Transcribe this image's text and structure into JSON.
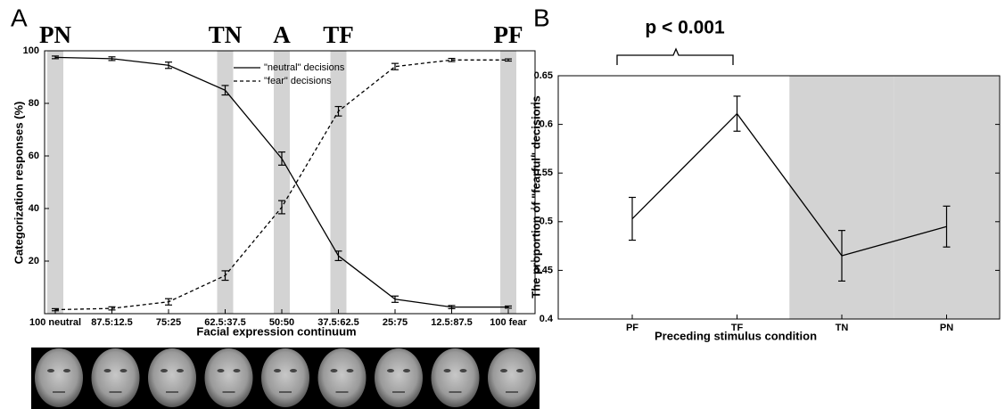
{
  "chart_data": [
    {
      "type": "line",
      "panel_label": "A",
      "x_label": "Facial expression continuum",
      "y_label": "Categorization responses (%)",
      "categories": [
        "100 neutral",
        "87.5:12.5",
        "75:25",
        "62.5:37.5",
        "50:50",
        "37.5:62.5",
        "25:75",
        "12.5:87.5",
        "100 fear"
      ],
      "band_labels": [
        "PN",
        null,
        null,
        "TN",
        "A",
        "TF",
        null,
        null,
        "PF"
      ],
      "ylim": [
        0,
        100
      ],
      "yticks": [
        20,
        40,
        60,
        80,
        100
      ],
      "legend": "top-center",
      "series": [
        {
          "name": "\"neutral\" decisions",
          "color": "#000000",
          "line_style": "solid",
          "values": [
            97.5,
            97,
            94.5,
            85,
            59,
            22,
            5.5,
            2.5,
            2.5
          ],
          "errors": [
            0.5,
            0.7,
            1.2,
            1.8,
            2.5,
            1.8,
            1.2,
            0.6,
            0.4
          ]
        },
        {
          "name": "\"fear\" decisions",
          "color": "#000000",
          "line_style": "dashed",
          "values": [
            1.5,
            2,
            4.5,
            14.5,
            40.5,
            77,
            94,
            96.5,
            96.5
          ],
          "errors": [
            0.4,
            0.6,
            1.2,
            1.8,
            2.5,
            1.8,
            1.2,
            0.6,
            0.4
          ]
        }
      ]
    },
    {
      "type": "line",
      "panel_label": "B",
      "x_label": "Preceding stimulus condition",
      "y_label": "The proportion of \"fearful\" decisions",
      "annotation": "p < 0.001",
      "categories": [
        "PF",
        "TF",
        "TN",
        "PN"
      ],
      "shaded": [
        false,
        false,
        true,
        true
      ],
      "ylim": [
        0.4,
        0.65
      ],
      "yticks": [
        0.4,
        0.45,
        0.5,
        0.55,
        0.6,
        0.65
      ],
      "color": "#000000",
      "values": [
        0.503,
        0.611,
        0.465,
        0.495
      ],
      "errors": [
        0.022,
        0.018,
        0.026,
        0.021
      ]
    }
  ]
}
